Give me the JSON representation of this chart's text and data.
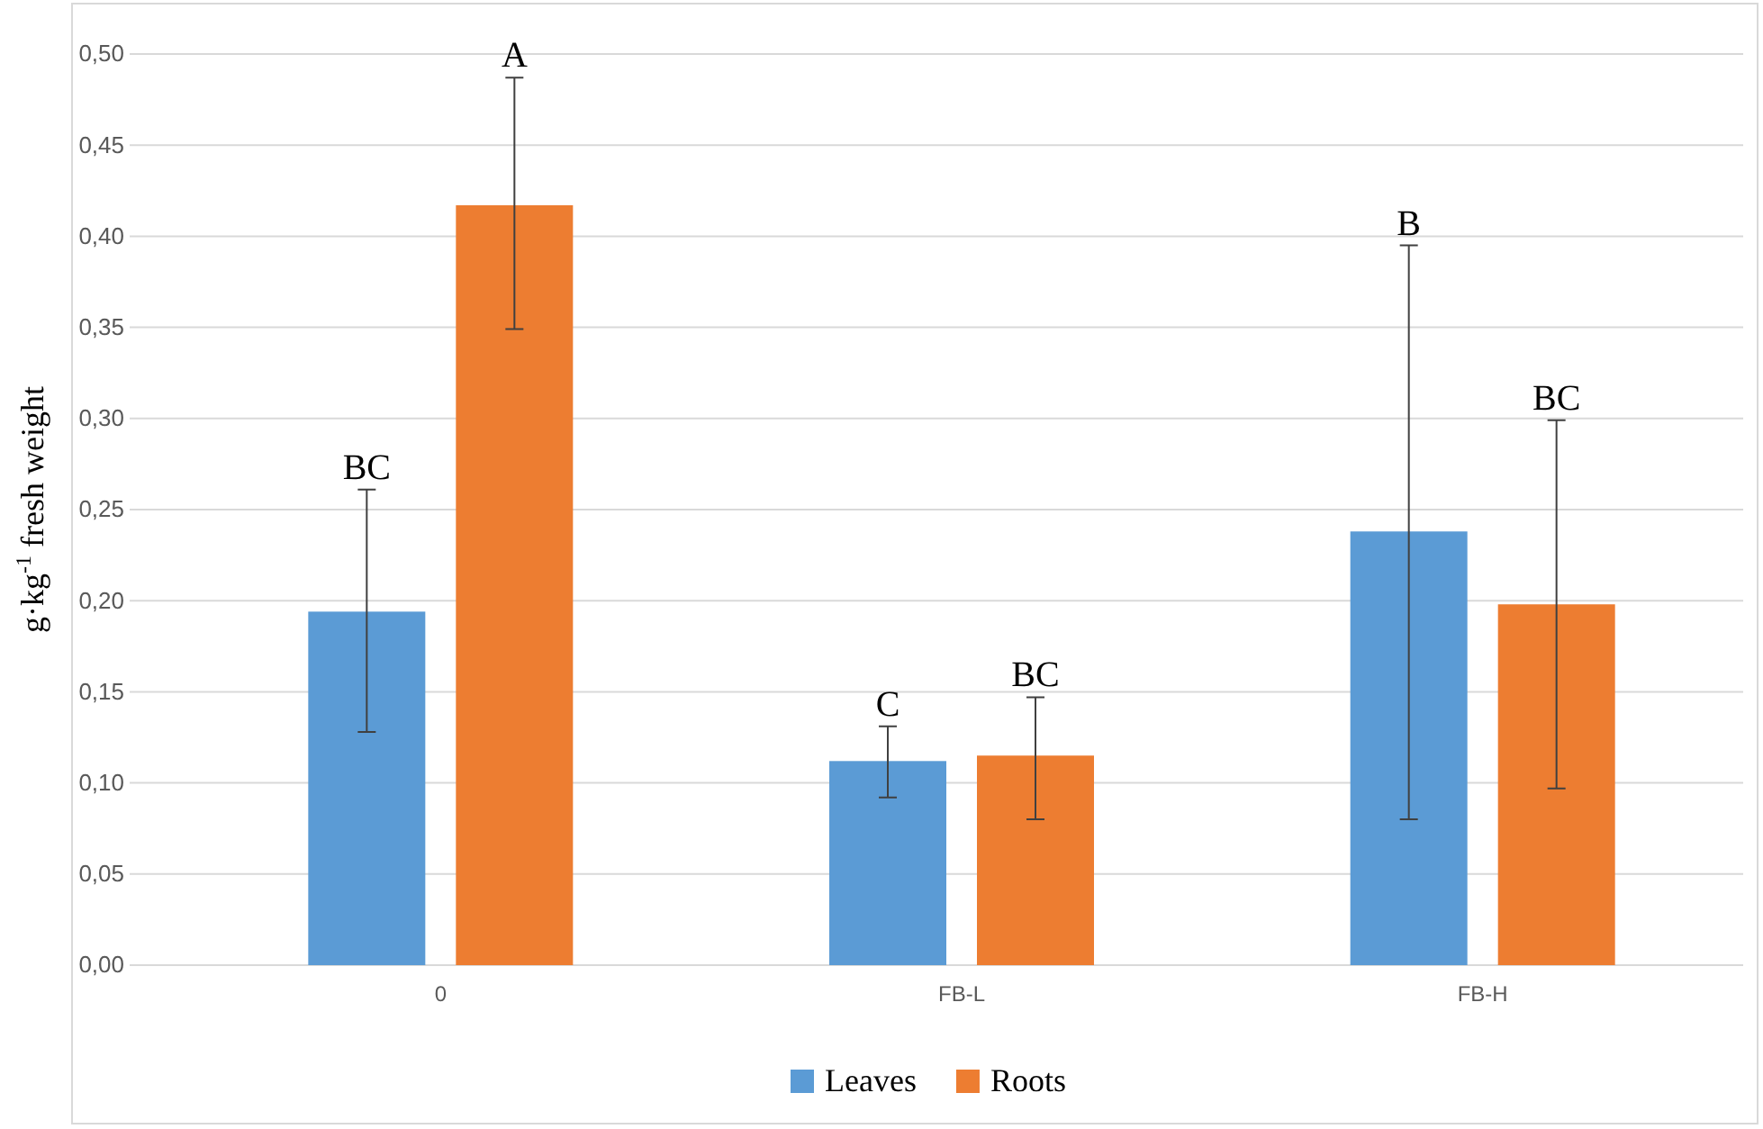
{
  "chart_data": {
    "type": "bar",
    "ylabel": "g·kg$^{-1}$ fresh weight",
    "categories": [
      "0",
      "FB-L",
      "FB-H"
    ],
    "series": [
      {
        "name": "Leaves",
        "color": "#5b9bd5",
        "values": [
          0.194,
          0.112,
          0.238
        ],
        "errors": [
          [
            0.128,
            0.261
          ],
          [
            0.092,
            0.131
          ],
          [
            0.08,
            0.395
          ]
        ]
      },
      {
        "name": "Roots",
        "color": "#ed7d31",
        "values": [
          0.417,
          0.115,
          0.198
        ],
        "errors": [
          [
            0.349,
            0.487
          ],
          [
            0.08,
            0.147
          ],
          [
            0.097,
            0.299
          ]
        ]
      }
    ],
    "annotations": [
      "BC",
      "A",
      "C",
      "BC",
      "B",
      "BC"
    ],
    "ylim": [
      0,
      0.5
    ],
    "yticks": [
      {
        "value": 0,
        "label": "0,00"
      },
      {
        "value": 0.05,
        "label": "0,05"
      },
      {
        "value": 0.1,
        "label": "0,10"
      },
      {
        "value": 0.15,
        "label": "0,15"
      },
      {
        "value": 0.2,
        "label": "0,20"
      },
      {
        "value": 0.25,
        "label": "0,25"
      },
      {
        "value": 0.3,
        "label": "0,30"
      },
      {
        "value": 0.35,
        "label": "0,35"
      },
      {
        "value": 0.4,
        "label": "0,40"
      },
      {
        "value": 0.45,
        "label": "0,45"
      },
      {
        "value": 0.5,
        "label": "0,50"
      }
    ],
    "grid": true,
    "legend": "bottom"
  }
}
